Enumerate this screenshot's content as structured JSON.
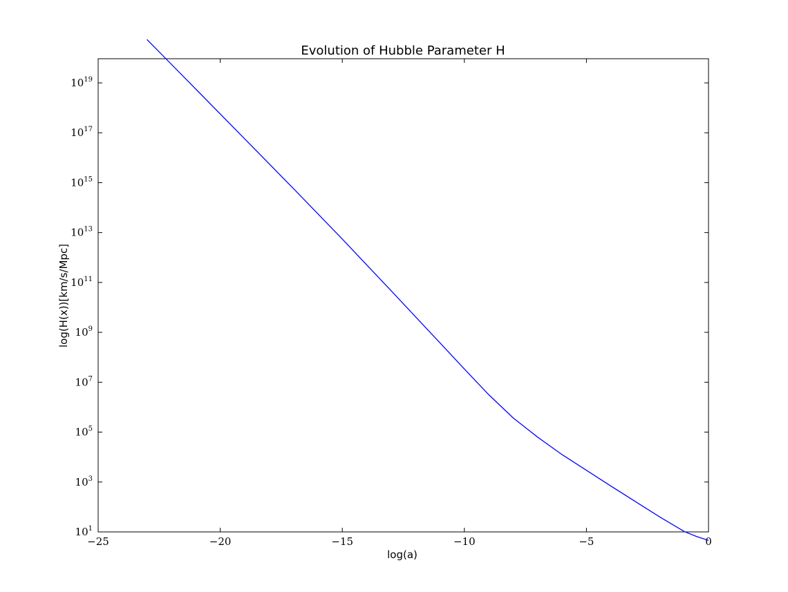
{
  "chart_data": {
    "type": "line",
    "title": "Evolution of Hubble Parameter H",
    "xlabel": "log(a)",
    "ylabel": "log(H(x))[km/s/Mpc]",
    "xlim": [
      -25,
      0
    ],
    "ylim_exponent": [
      1,
      20
    ],
    "y_scale": "log",
    "grid": false,
    "x_ticks": [
      -25,
      -20,
      -15,
      -10,
      -5,
      0
    ],
    "x_tick_labels": [
      "−25",
      "−20",
      "−15",
      "−10",
      "−5",
      "0"
    ],
    "y_ticks": [
      {
        "base": "10",
        "exp": "1"
      },
      {
        "base": "10",
        "exp": "3"
      },
      {
        "base": "10",
        "exp": "5"
      },
      {
        "base": "10",
        "exp": "7"
      },
      {
        "base": "10",
        "exp": "9"
      },
      {
        "base": "10",
        "exp": "11"
      },
      {
        "base": "10",
        "exp": "13"
      },
      {
        "base": "10",
        "exp": "15"
      },
      {
        "base": "10",
        "exp": "17"
      },
      {
        "base": "10",
        "exp": "19"
      }
    ],
    "series": [
      {
        "color": "#0000ff",
        "x": [
          -23,
          -21,
          -19,
          -17,
          -15,
          -13,
          -11,
          -10,
          -9,
          -8,
          -7,
          -6,
          -5,
          -4,
          -3,
          -2,
          -1,
          -0.5,
          0
        ],
        "log10_y": [
          19.74,
          17.75,
          15.76,
          13.76,
          11.74,
          9.67,
          7.58,
          6.53,
          5.5,
          4.57,
          3.8,
          3.1,
          2.47,
          1.84,
          1.22,
          0.6,
          0.02,
          -0.18,
          -0.34
        ]
      }
    ]
  }
}
